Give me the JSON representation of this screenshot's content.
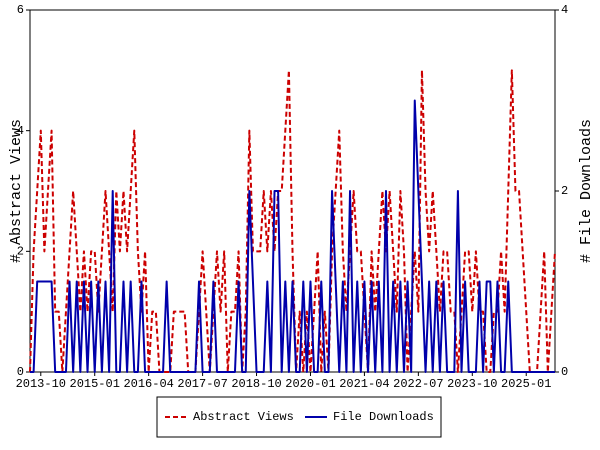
{
  "chart_data": {
    "type": "line",
    "y_label": "# Abstract Views",
    "y2_label": "# File Downloads",
    "x": [
      "2013-07",
      "2013-08",
      "2013-09",
      "2013-10",
      "2013-11",
      "2013-12",
      "2014-01",
      "2014-02",
      "2014-03",
      "2014-04",
      "2014-05",
      "2014-06",
      "2014-07",
      "2014-08",
      "2014-09",
      "2014-10",
      "2014-11",
      "2014-12",
      "2015-01",
      "2015-02",
      "2015-03",
      "2015-04",
      "2015-05",
      "2015-06",
      "2015-07",
      "2015-08",
      "2015-09",
      "2015-10",
      "2015-11",
      "2015-12",
      "2016-01",
      "2016-02",
      "2016-03",
      "2016-04",
      "2016-05",
      "2016-06",
      "2016-07",
      "2016-08",
      "2016-09",
      "2016-10",
      "2016-11",
      "2016-12",
      "2017-01",
      "2017-02",
      "2017-03",
      "2017-04",
      "2017-05",
      "2017-06",
      "2017-07",
      "2017-08",
      "2017-09",
      "2017-10",
      "2017-11",
      "2017-12",
      "2018-01",
      "2018-02",
      "2018-03",
      "2018-04",
      "2018-05",
      "2018-06",
      "2018-07",
      "2018-08",
      "2018-09",
      "2018-10",
      "2018-11",
      "2018-12",
      "2019-01",
      "2019-02",
      "2019-03",
      "2019-04",
      "2019-05",
      "2019-06",
      "2019-07",
      "2019-08",
      "2019-09",
      "2019-10",
      "2019-11",
      "2019-12",
      "2020-01",
      "2020-02",
      "2020-03",
      "2020-04",
      "2020-05",
      "2020-06",
      "2020-07",
      "2020-08",
      "2020-09",
      "2020-10",
      "2020-11",
      "2020-12",
      "2021-01",
      "2021-02",
      "2021-03",
      "2021-04",
      "2021-05",
      "2021-06",
      "2021-07",
      "2021-08",
      "2021-09",
      "2021-10",
      "2021-11",
      "2021-12",
      "2022-01",
      "2022-02",
      "2022-03",
      "2022-04",
      "2022-05",
      "2022-06",
      "2022-07",
      "2022-08",
      "2022-09",
      "2022-10",
      "2022-11",
      "2022-12",
      "2023-01",
      "2023-02",
      "2023-03",
      "2023-04",
      "2023-05",
      "2023-06",
      "2023-07",
      "2023-08",
      "2023-09",
      "2023-10",
      "2023-11",
      "2023-12",
      "2024-01",
      "2024-02",
      "2024-03",
      "2024-04",
      "2024-05",
      "2024-06",
      "2024-07",
      "2024-08",
      "2024-09",
      "2024-10",
      "2024-11",
      "2024-12",
      "2025-01",
      "2025-02",
      "2025-03",
      "2025-04",
      "2025-05",
      "2025-06",
      "2025-07",
      "2025-08",
      "2025-09"
    ],
    "xlim": [
      "2013-07",
      "2025-09"
    ],
    "xticks": [
      "2013-10",
      "2015-01",
      "2016-04",
      "2017-07",
      "2018-10",
      "2020-01",
      "2021-04",
      "2022-07",
      "2023-10",
      "2025-01"
    ],
    "ylim": [
      0,
      6
    ],
    "yticks": [
      0,
      2,
      4,
      6
    ],
    "y2lim": [
      0,
      4
    ],
    "y2ticks": [
      0,
      2,
      4
    ],
    "series": [
      {
        "name": "Abstract Views",
        "color": "#cc0000",
        "dashed": true,
        "values": [
          0,
          2,
          3,
          4,
          2,
          3,
          4,
          1,
          1,
          0,
          1,
          2,
          3,
          2,
          1,
          2,
          1,
          2,
          2,
          1,
          2,
          3,
          2,
          1,
          3,
          2,
          3,
          2,
          3,
          4,
          2,
          1,
          2,
          0,
          1,
          1,
          0,
          0,
          0,
          0,
          1,
          1,
          1,
          1,
          0,
          0,
          0,
          1,
          2,
          1,
          0,
          1,
          2,
          1,
          2,
          0,
          1,
          1,
          2,
          0,
          1,
          4,
          2,
          2,
          2,
          3,
          2,
          3,
          2,
          3,
          3,
          4,
          5,
          2,
          0,
          1,
          0,
          1,
          0,
          1,
          2,
          0,
          1,
          0,
          2,
          3,
          4,
          2,
          1,
          2,
          3,
          2,
          2,
          1,
          0,
          2,
          1,
          2,
          3,
          2,
          3,
          2,
          1,
          3,
          2,
          0,
          1,
          2,
          1,
          5,
          3,
          2,
          3,
          2,
          1,
          2,
          2,
          1,
          1,
          0,
          1,
          2,
          2,
          1,
          2,
          1,
          1,
          0,
          0,
          1,
          1,
          2,
          1,
          3,
          5,
          3,
          3,
          2,
          1,
          0,
          0,
          0,
          1,
          2,
          0,
          1,
          2
        ]
      },
      {
        "name": "File Downloads",
        "color": "#0000aa",
        "axis": "y2",
        "values": [
          0,
          0,
          1,
          1,
          1,
          1,
          1,
          0,
          0,
          0,
          0,
          1,
          0,
          1,
          0,
          1,
          0,
          1,
          0,
          1,
          0,
          1,
          0,
          2,
          0,
          0,
          1,
          0,
          1,
          0,
          0,
          1,
          0,
          0,
          0,
          0,
          0,
          0,
          1,
          0,
          0,
          0,
          0,
          0,
          0,
          0,
          0,
          1,
          0,
          0,
          0,
          1,
          0,
          0,
          0,
          0,
          0,
          0,
          1,
          0,
          0,
          2,
          1,
          0,
          0,
          0,
          1,
          0,
          2,
          2,
          0,
          1,
          0,
          1,
          0,
          0,
          1,
          0,
          1,
          0,
          0,
          1,
          0,
          0,
          2,
          1,
          0,
          1,
          0,
          2,
          0,
          1,
          0,
          1,
          0,
          1,
          0,
          1,
          0,
          2,
          0,
          1,
          0,
          1,
          0,
          1,
          0,
          3,
          2,
          1,
          0,
          1,
          0,
          1,
          0,
          1,
          0,
          0,
          0,
          2,
          0,
          1,
          0,
          0,
          0,
          1,
          0,
          1,
          1,
          0,
          1,
          0,
          0,
          1,
          0,
          0,
          0,
          0,
          0,
          0,
          0,
          0,
          0,
          0,
          0,
          0,
          0
        ]
      }
    ]
  }
}
